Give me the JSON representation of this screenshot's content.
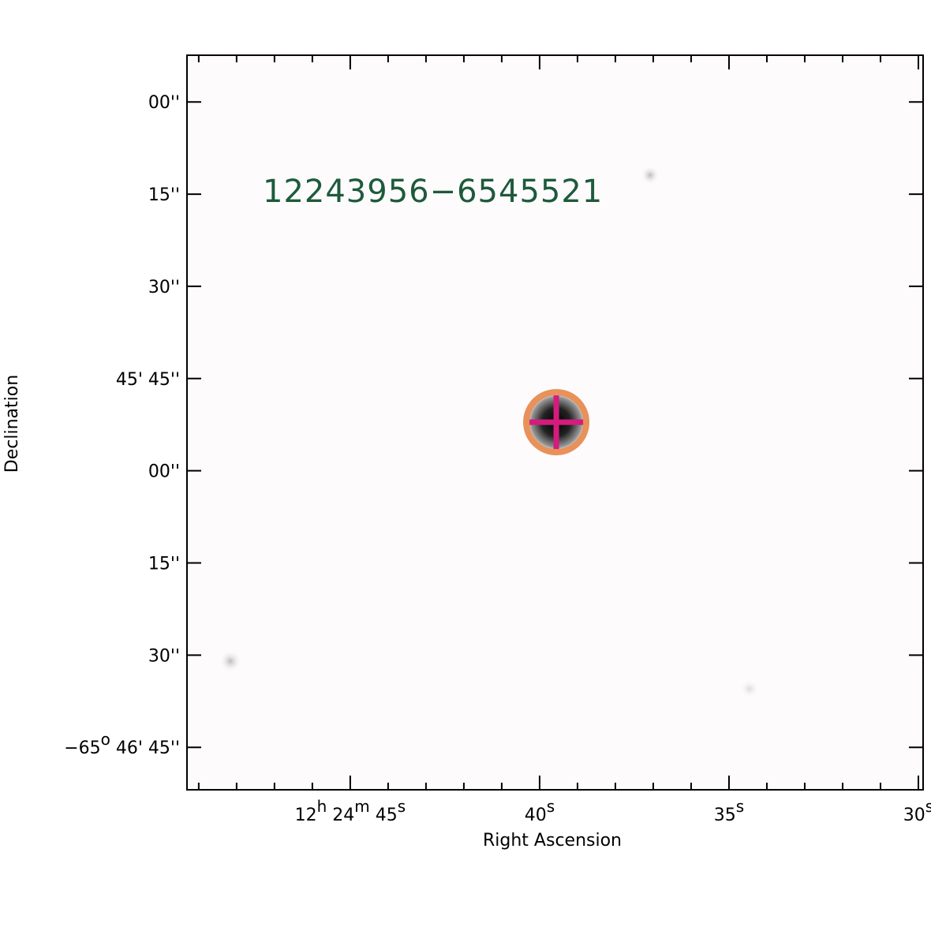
{
  "chart_data": {
    "type": "image",
    "title": "12243956−6545521",
    "xlabel": "Right Ascension",
    "ylabel": "Declination",
    "xlim": [
      44689.31,
      44669.875
    ],
    "ylim": [
      -236811.9,
      -236692.4
    ],
    "xticks": [
      {
        "value": 44685,
        "label": [
          "12",
          "h",
          " 24",
          "m",
          " 45",
          "s"
        ]
      },
      {
        "value": 44680,
        "label": [
          "40",
          "s"
        ]
      },
      {
        "value": 44675,
        "label": [
          "35",
          "s"
        ]
      },
      {
        "value": 44670,
        "label": [
          "30",
          "s"
        ]
      }
    ],
    "xminor_ticks": [
      44689,
      44688,
      44687,
      44686,
      44684,
      44683,
      44682,
      44681,
      44679,
      44678,
      44677,
      44676,
      44674,
      44673,
      44672,
      44671
    ],
    "yticks": [
      {
        "value": -236700,
        "label": [
          "00''"
        ]
      },
      {
        "value": -236715,
        "label": [
          "15''"
        ]
      },
      {
        "value": -236730,
        "label": [
          "30''"
        ]
      },
      {
        "value": -236745,
        "label": [
          "45' 45''"
        ]
      },
      {
        "value": -236760,
        "label": [
          "00''"
        ]
      },
      {
        "value": -236775,
        "label": [
          "15''"
        ]
      },
      {
        "value": -236790,
        "label": [
          "30''"
        ]
      },
      {
        "value": -236805,
        "label": [
          "−65",
          "o",
          " 46' 45''"
        ]
      }
    ],
    "target": {
      "ra": 44679.56,
      "dec": -236752.1
    },
    "title_color": "#1d5a3c",
    "circle_color": "#e8915a",
    "cross_color": "#d41c7c"
  }
}
